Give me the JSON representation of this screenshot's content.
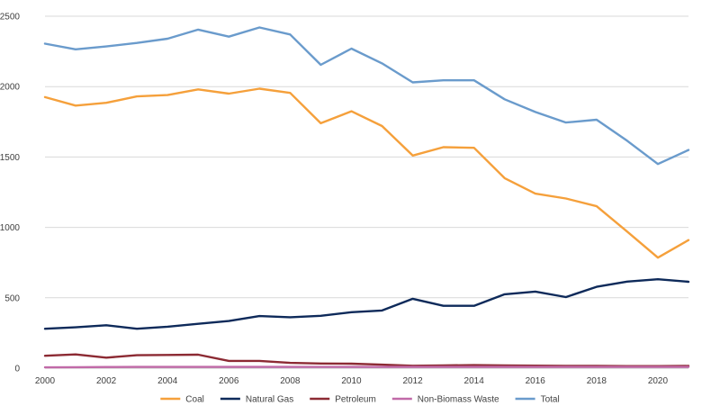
{
  "chart_data": {
    "type": "line",
    "title": "",
    "xlabel": "",
    "ylabel": "",
    "xlim": [
      2000,
      2021
    ],
    "ylim": [
      0,
      2500
    ],
    "x_ticks": [
      "2000",
      "2002",
      "2004",
      "2006",
      "2008",
      "2010",
      "2012",
      "2014",
      "2016",
      "2018",
      "2020"
    ],
    "y_ticks": [
      "0",
      "500",
      "1000",
      "1500",
      "2000",
      "2500"
    ],
    "grid": "horizontal",
    "legend_position": "bottom",
    "x": [
      2000,
      2001,
      2002,
      2003,
      2004,
      2005,
      2006,
      2007,
      2008,
      2009,
      2010,
      2011,
      2012,
      2013,
      2014,
      2015,
      2016,
      2017,
      2018,
      2019,
      2020,
      2021
    ],
    "series": [
      {
        "name": "Coal",
        "color": "#f5a03b",
        "values": [
          1925,
          1865,
          1885,
          1930,
          1940,
          1980,
          1950,
          1985,
          1955,
          1740,
          1825,
          1720,
          1510,
          1570,
          1565,
          1350,
          1240,
          1205,
          1150,
          970,
          785,
          910
        ]
      },
      {
        "name": "Natural Gas",
        "color": "#0e2a5a",
        "values": [
          280,
          290,
          305,
          280,
          295,
          315,
          335,
          370,
          362,
          372,
          398,
          410,
          493,
          443,
          443,
          525,
          544,
          505,
          578,
          615,
          632,
          614
        ]
      },
      {
        "name": "Petroleum",
        "color": "#8c2a33",
        "values": [
          88,
          98,
          75,
          92,
          94,
          96,
          52,
          52,
          38,
          33,
          32,
          25,
          17,
          20,
          22,
          20,
          18,
          16,
          16,
          15,
          15,
          16
        ]
      },
      {
        "name": "Non-Biomass Waste",
        "color": "#c16aa8",
        "values": [
          6,
          7,
          8,
          9,
          9,
          9,
          9,
          9,
          9,
          9,
          9,
          9,
          9,
          9,
          9,
          9,
          9,
          9,
          9,
          9,
          9,
          9
        ]
      },
      {
        "name": "Total",
        "color": "#6a9bcc",
        "values": [
          2305,
          2265,
          2285,
          2310,
          2340,
          2405,
          2355,
          2420,
          2370,
          2155,
          2270,
          2165,
          2030,
          2045,
          2045,
          1910,
          1820,
          1745,
          1765,
          1615,
          1450,
          1550
        ]
      }
    ]
  },
  "colors": {
    "grid": "#d9d9d9",
    "axis": "#bfbfbf",
    "text": "#404040"
  }
}
